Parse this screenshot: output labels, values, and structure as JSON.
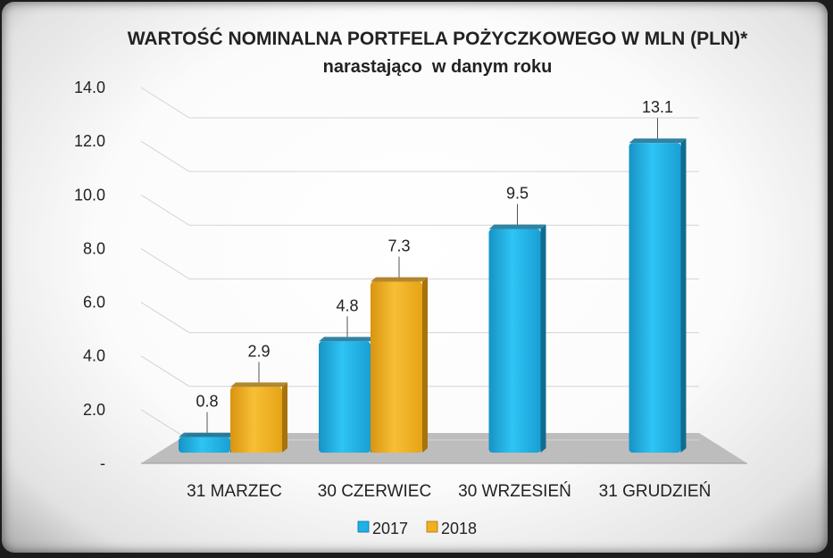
{
  "chart_data": {
    "type": "bar",
    "title": "WARTOŚĆ NOMINALNA PORTFELA POŻYCZKOWEGO W MLN (PLN)*",
    "subtitle": "narastająco  w danym roku",
    "categories": [
      "31 MARZEC",
      "30 CZERWIEC",
      "30 WRZESIEŃ",
      "31 GRUDZIEŃ"
    ],
    "series": [
      {
        "name": "2017",
        "values": [
          0.8,
          4.8,
          9.5,
          13.1
        ],
        "labels": [
          "0.8",
          "4.8",
          "9.5",
          "13.1"
        ],
        "color": "#1fb2e8"
      },
      {
        "name": "2018",
        "values": [
          2.9,
          7.3,
          null,
          null
        ],
        "labels": [
          "2.9",
          "7.3",
          "",
          ""
        ],
        "color": "#f2b01e"
      }
    ],
    "y_ticks": [
      "-",
      "2.0",
      "4.0",
      "6.0",
      "8.0",
      "10.0",
      "12.0",
      "14.0"
    ],
    "ylim": [
      0,
      14
    ],
    "grid": true,
    "legend": "bottom"
  }
}
